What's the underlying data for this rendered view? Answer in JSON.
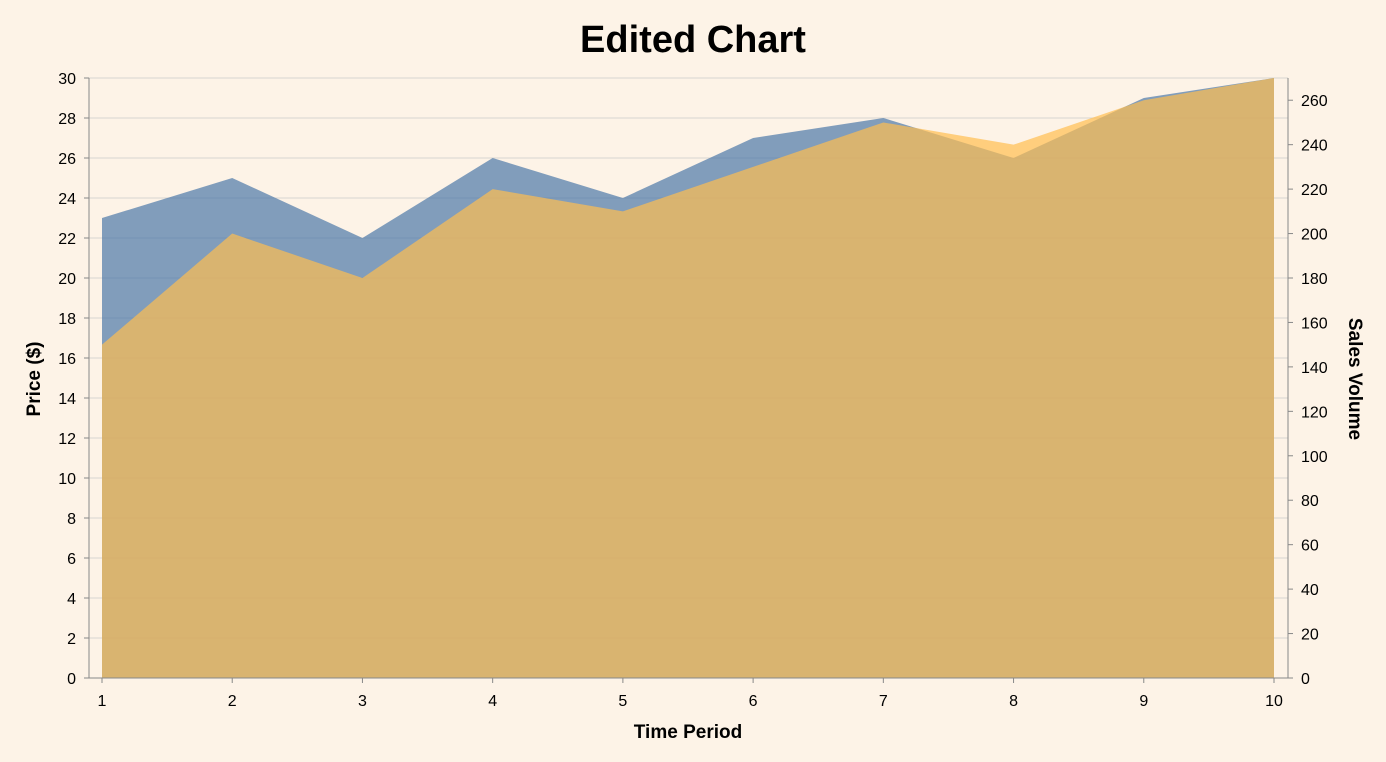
{
  "chart_data": {
    "type": "area",
    "title": "Edited Chart",
    "xlabel": "Time Period",
    "ylabel_left": "Price ($)",
    "ylabel_right": "Sales Volume",
    "x": [
      1,
      2,
      3,
      4,
      5,
      6,
      7,
      8,
      9,
      10
    ],
    "x_ticks": [
      "1",
      "2",
      "3",
      "4",
      "5",
      "6",
      "7",
      "8",
      "9",
      "10"
    ],
    "ylim_left": [
      0,
      30
    ],
    "ylim_right": [
      0,
      270
    ],
    "y_ticks_left": [
      0,
      2,
      4,
      6,
      8,
      10,
      12,
      14,
      16,
      18,
      20,
      22,
      24,
      26,
      28,
      30
    ],
    "y_ticks_right": [
      0,
      20,
      40,
      60,
      80,
      100,
      120,
      140,
      160,
      180,
      200,
      220,
      240,
      260
    ],
    "grid": true,
    "series": [
      {
        "axis": "left",
        "color": "#4c78a8",
        "opacity": 0.7,
        "values": [
          23,
          25,
          22,
          26,
          24,
          27,
          28,
          26,
          29,
          30
        ]
      },
      {
        "axis": "right",
        "color": "#ffbe50",
        "opacity": 0.7,
        "values": [
          150,
          200,
          180,
          220,
          210,
          230,
          250,
          240,
          260,
          270
        ]
      }
    ]
  }
}
